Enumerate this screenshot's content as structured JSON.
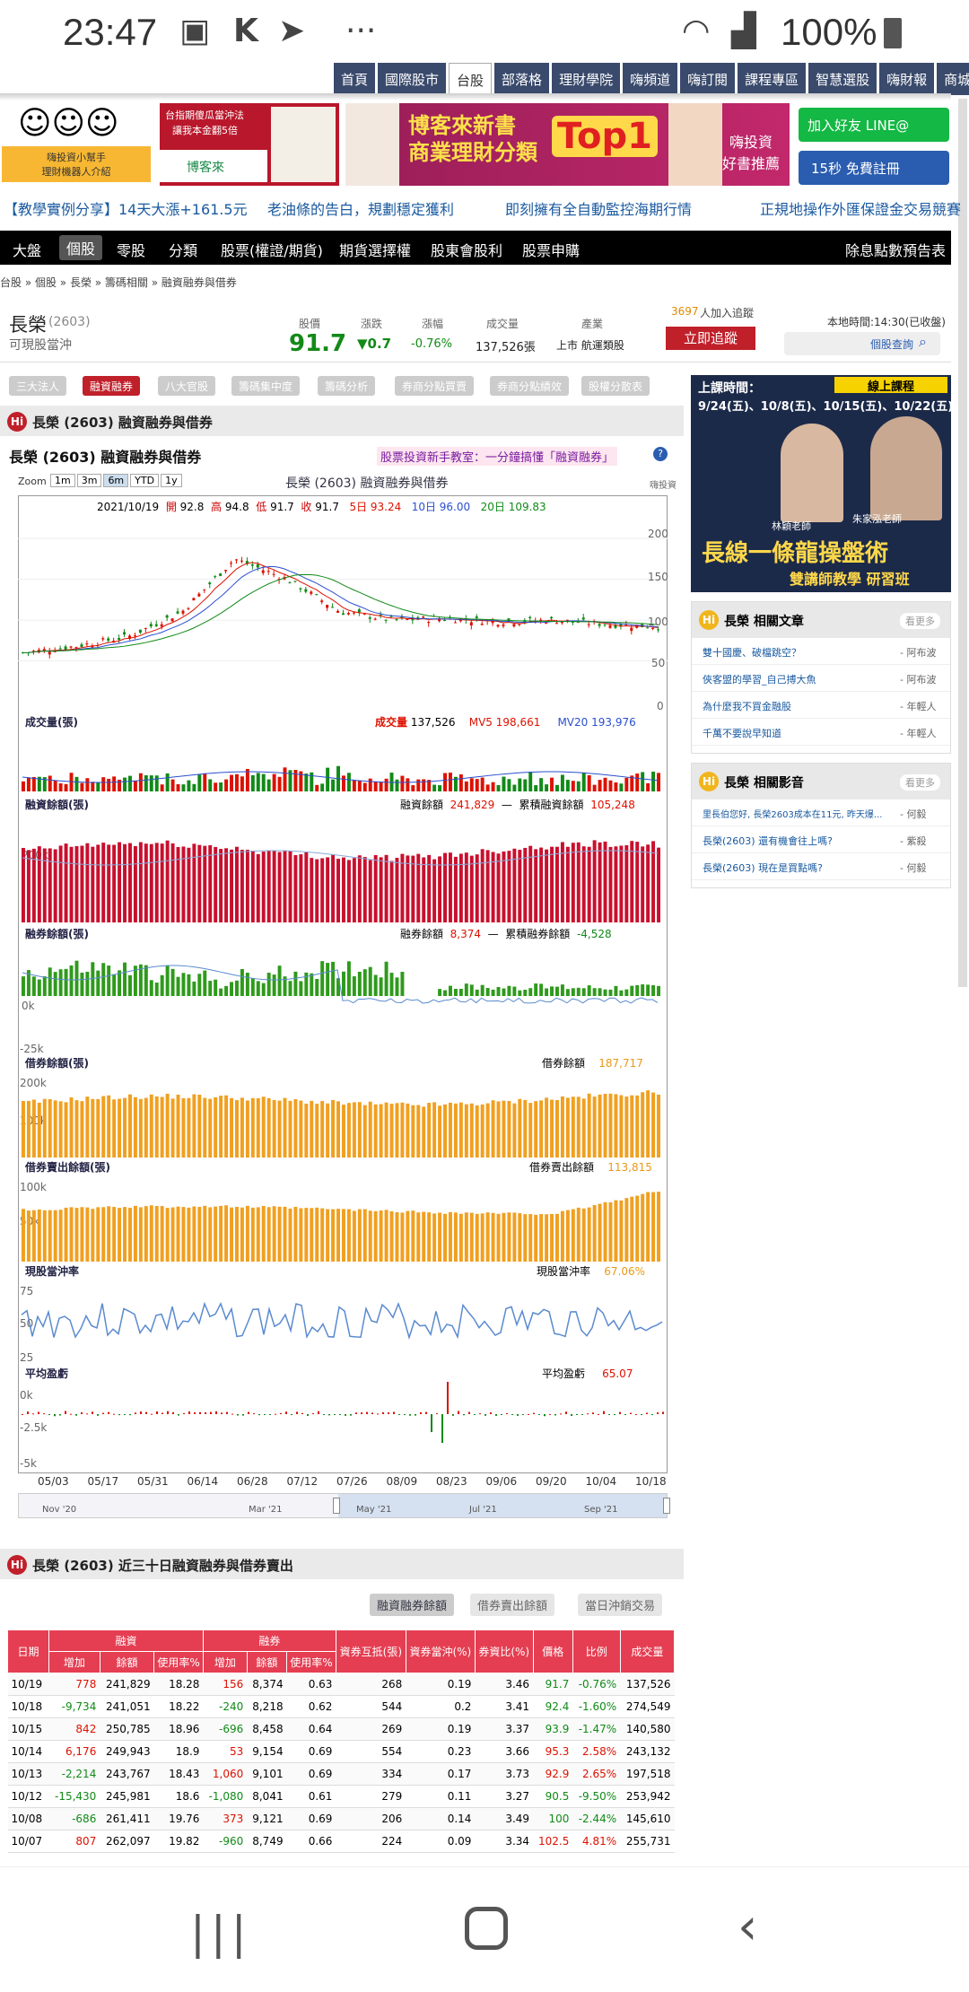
{
  "status": {
    "time": "23:47",
    "battery": "100%"
  },
  "topnav": [
    "首頁",
    "國際股市",
    "台股",
    "部落格",
    "理財學院",
    "嗨頻道",
    "嗨訂閱",
    "課程專區",
    "智慧選股",
    "嗨財報",
    "商城"
  ],
  "banners": {
    "b1": "嗨投資小幫手\n理財機器人介紹",
    "b2a": "台指期傻瓜當沖法",
    "b2b": "讓我本金翻5倍",
    "b2c": "博客來",
    "b3": "博客來新書\n商業理財分類",
    "b3top": "Top1",
    "b3r": "嗨投資\n好書推薦",
    "line": "加入好友 LINE@",
    "fb": "15秒 免費註冊"
  },
  "ticker": [
    "【教學實例分享】14天大漲+161.5元",
    "老油條的告白，規劃穩定獲利",
    "即刻擁有全自動監控海期行情",
    "正規地操作外匯保證金交易競賽"
  ],
  "blknav": [
    "大盤",
    "個股",
    "零股",
    "分類",
    "股票(權證/期貨)",
    "期貨選擇權",
    "股東會股利",
    "股票申購",
    "除息點數預告表"
  ],
  "breadcrumb": "台股 » 個股 » 長榮 » 籌碼相關 » 融資融券與借券",
  "stock": {
    "name": "長榮",
    "code": "(2603)",
    "sub": "可現股當沖",
    "price_l": "股價",
    "price": "91.7",
    "chg_l": "漲跌",
    "chg": "▼0.7",
    "pct_l": "漲幅",
    "pct": "-0.76%",
    "vol_l": "成交量",
    "vol": "137,526張",
    "ind_l": "產業",
    "ind": "上市 航運類股",
    "follow_n": "3697",
    "follow_t": "人加入追蹤",
    "follow_btn": "立即追蹤",
    "time": "本地時間:14:30(已收盤)",
    "search": "個股查詢"
  },
  "tabs": [
    "三大法人",
    "融資融券",
    "八大官股",
    "籌碼集中度",
    "籌碼分析",
    "券商分點買賣",
    "券商分點績效",
    "股權分散表"
  ],
  "section1": "長榮 (2603) 融資融券與借券",
  "chart_hdr": {
    "title": "長榮 (2603) 融資融券與借券",
    "promo": "股票投資新手教室：一分鐘搞懂「融資融券」"
  },
  "chart": {
    "zoom_l": "Zoom",
    "zoom": [
      "1m",
      "3m",
      "6m",
      "YTD",
      "1y"
    ],
    "zoom_active": "6m",
    "inner_title": "長榮 (2603) 融資融券與借券",
    "brand": "嗨投資",
    "ohlc": {
      "date": "2021/10/19",
      "o_l": "開",
      "o": "92.8",
      "h_l": "高",
      "h": "94.8",
      "l_l": "低",
      "l": "91.7",
      "c_l": "收",
      "c": "91.7",
      "ma5": "5日 93.24",
      "ma10": "10日 96.00",
      "ma20": "20日 109.83"
    },
    "price_ticks": [
      "200",
      "150",
      "100",
      "50",
      "0"
    ],
    "vol": {
      "title": "成交量(張)",
      "label": "成交量",
      "value": "137,526",
      "mv5": "MV5 198,661",
      "mv20": "MV20 193,976"
    },
    "margin": {
      "title": "融資餘額(張)",
      "l1": "融資餘額",
      "v1": "241,829",
      "l2": "累積融資餘額",
      "v2": "105,248",
      "tick": "200k"
    },
    "short": {
      "title": "融券餘額(張)",
      "l1": "融券餘額",
      "v1": "8,374",
      "l2": "累積融券餘額",
      "v2": "-4,528",
      "tick_top": "0k",
      "tick_bot": "-25k"
    },
    "lend": {
      "title": "借券餘額(張)",
      "l1": "借券餘額",
      "v1": "187,717",
      "t1": "200k",
      "t2": "100k"
    },
    "lendsell": {
      "title": "借券賣出餘額(張)",
      "l1": "借券賣出餘額",
      "v1": "113,815",
      "t1": "100k",
      "t2": "50k"
    },
    "daytrade": {
      "title": "現股當沖率",
      "l1": "現股當沖率",
      "v1": "67.06%",
      "t1": "75",
      "t2": "50",
      "t3": "25"
    },
    "avg": {
      "title": "平均盈虧",
      "l1": "平均盈虧",
      "v1": "65.07",
      "t1": "0k",
      "t2": "-2.5k",
      "t3": "-5k"
    },
    "dates": [
      "05/03",
      "05/17",
      "05/31",
      "06/14",
      "06/28",
      "07/12",
      "07/26",
      "08/09",
      "08/23",
      "09/06",
      "09/20",
      "10/04",
      "10/18"
    ],
    "nav_dates": [
      "Nov '20",
      "Mar '21",
      "May '21",
      "Jul '21",
      "Sep '21"
    ]
  },
  "chart_data": {
    "type": "line",
    "x": [
      "05/03",
      "05/17",
      "05/31",
      "06/14",
      "06/28",
      "07/12",
      "07/26",
      "08/09",
      "08/23",
      "09/06",
      "09/20",
      "10/04",
      "10/18"
    ],
    "series": [
      {
        "values": [
          60,
          68,
          80,
          110,
          175,
          150,
          110,
          100,
          102,
          98,
          100,
          95,
          92
        ]
      }
    ],
    "ylim": [
      0,
      220
    ]
  },
  "section2": "長榮 (2603) 近三十日融資融券與借券賣出",
  "table_tabs": [
    "融資融券餘額",
    "借券賣出餘額",
    "當日沖銷交易"
  ],
  "table": {
    "grp": [
      "融資",
      "融券"
    ],
    "hdr": [
      "日期",
      "增加",
      "餘額",
      "使用率%",
      "增加",
      "餘額",
      "使用率%",
      "資券互抵(張)",
      "資券當沖(%)",
      "券資比(%)",
      "價格",
      "比例",
      "成交量"
    ],
    "rows": [
      [
        "10/19",
        "778",
        "241,829",
        "18.28",
        "156",
        "8,374",
        "0.63",
        "268",
        "0.19",
        "3.46",
        "91.7",
        "-0.76%",
        "137,526"
      ],
      [
        "10/18",
        "-9,734",
        "241,051",
        "18.22",
        "-240",
        "8,218",
        "0.62",
        "544",
        "0.2",
        "3.41",
        "92.4",
        "-1.60%",
        "274,549"
      ],
      [
        "10/15",
        "842",
        "250,785",
        "18.96",
        "-696",
        "8,458",
        "0.64",
        "269",
        "0.19",
        "3.37",
        "93.9",
        "-1.47%",
        "140,580"
      ],
      [
        "10/14",
        "6,176",
        "249,943",
        "18.9",
        "53",
        "9,154",
        "0.69",
        "554",
        "0.23",
        "3.66",
        "95.3",
        "2.58%",
        "243,132"
      ],
      [
        "10/13",
        "-2,214",
        "243,767",
        "18.43",
        "1,060",
        "9,101",
        "0.69",
        "334",
        "0.17",
        "3.73",
        "92.9",
        "2.65%",
        "197,518"
      ],
      [
        "10/12",
        "-15,430",
        "245,981",
        "18.6",
        "-1,080",
        "8,041",
        "0.61",
        "279",
        "0.11",
        "3.27",
        "90.5",
        "-9.50%",
        "253,942"
      ],
      [
        "10/08",
        "-686",
        "261,411",
        "19.76",
        "373",
        "9,121",
        "0.69",
        "206",
        "0.14",
        "3.49",
        "100",
        "-2.44%",
        "145,610"
      ],
      [
        "10/07",
        "807",
        "262,097",
        "19.82",
        "-960",
        "8,749",
        "0.66",
        "224",
        "0.09",
        "3.34",
        "102.5",
        "4.81%",
        "255,731"
      ]
    ]
  },
  "ad": {
    "top": "上課時間：",
    "badge": "線上課程",
    "dates": "9/24(五)、10/8(五)、10/15(五)、10/22(五)",
    "t1": "林穎老師",
    "t2": "朱家泓老師",
    "main": "長線一條龍操盤術",
    "sub": "雙講師教學 研習班"
  },
  "articles": {
    "title": "長榮 相關文章",
    "more": "看更多",
    "items": [
      {
        "t": "雙十國慶、破檔跳空？",
        "a": "- 阿布波"
      },
      {
        "t": "俠客盟的學習_自己搏大魚",
        "a": "- 阿布波"
      },
      {
        "t": "為什麼我不買金融股",
        "a": "- 年輕人"
      },
      {
        "t": "千萬不要說早知道",
        "a": "- 年輕人"
      }
    ]
  },
  "videos": {
    "title": "長榮 相關影音",
    "more": "看更多",
    "items": [
      {
        "t": "里長伯您好, 長榮2603成本在11元, 昨天爆...",
        "a": "- 何毅"
      },
      {
        "t": "長榮(2603) 還有機會往上嗎?",
        "a": "- 紫殺"
      },
      {
        "t": "長榮(2603) 現在是買點嗎?",
        "a": "- 何毅"
      }
    ]
  }
}
